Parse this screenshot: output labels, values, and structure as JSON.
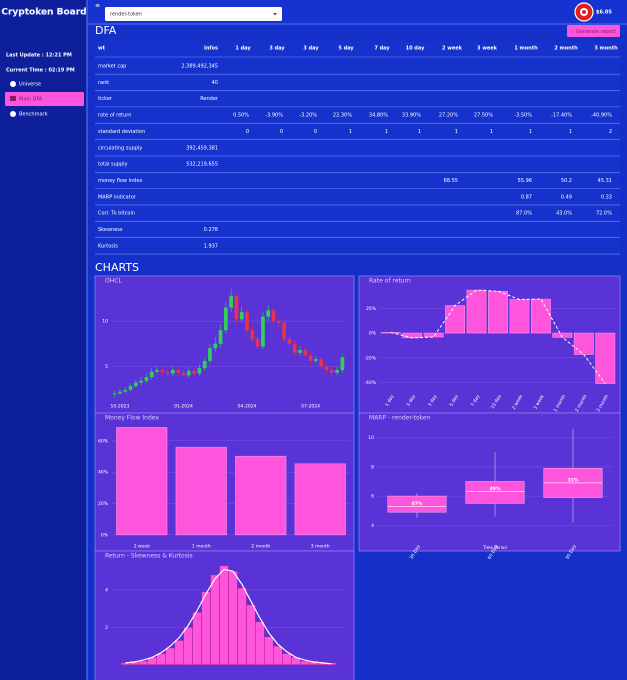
{
  "sidebar": {
    "logo": "Cryptoken Board",
    "last_update": "Last Update : 12:21 PM",
    "current_time": "Current Time : 02:19 PM",
    "nav": [
      "Universe",
      "Main DFA",
      "Benchmark"
    ]
  },
  "header": {
    "select": "render-token",
    "price": "$6.05"
  },
  "dfa": {
    "title": "DFA",
    "button": "Generate report",
    "table": {
      "columns": [
        "wt",
        "Infos",
        "1 day",
        "3 day",
        "3 day",
        "5 day",
        "7 day",
        "10 day",
        "2 week",
        "3 week",
        "1 month",
        "2 month",
        "3 month"
      ],
      "rows": [
        [
          "market cap",
          "2,389,492,345",
          null,
          null,
          null,
          null,
          null,
          null,
          null,
          null,
          null,
          null,
          null
        ],
        [
          "rank",
          "40",
          null,
          null,
          null,
          null,
          null,
          null,
          null,
          null,
          null,
          null,
          null
        ],
        [
          "ticker",
          "Render",
          null,
          null,
          null,
          null,
          null,
          null,
          null,
          null,
          null,
          null,
          null
        ],
        [
          "rate of return",
          null,
          "0.50%",
          "-3.90%",
          "-3.20%",
          "22.30%",
          "34.80%",
          "33.90%",
          "27.20%",
          "27.50%",
          "-3.50%",
          "-17.40%",
          "-40.90%"
        ],
        [
          "standard deviation",
          null,
          "0",
          "0",
          "0",
          "1",
          "1",
          "1",
          "1",
          "1",
          "1",
          "1",
          "2"
        ],
        [
          "circulating supply",
          "392,459,381",
          null,
          null,
          null,
          null,
          null,
          null,
          null,
          null,
          null,
          null,
          null
        ],
        [
          "total supply",
          "532,219,655",
          null,
          null,
          null,
          null,
          null,
          null,
          null,
          null,
          null,
          null,
          null
        ],
        [
          "money flow index",
          null,
          null,
          null,
          null,
          null,
          null,
          null,
          "68.55",
          null,
          "55.96",
          "50.2",
          "45.31"
        ],
        [
          "MARP indicator",
          null,
          null,
          null,
          null,
          null,
          null,
          null,
          null,
          null,
          "0.87",
          "0.49",
          "0.33"
        ],
        [
          "Corr. To bitcoin",
          null,
          null,
          null,
          null,
          null,
          null,
          null,
          null,
          null,
          "87.0%",
          "43.0%",
          "72.0%"
        ],
        [
          "Skewness",
          "0.278",
          null,
          null,
          null,
          null,
          null,
          null,
          null,
          null,
          null,
          null,
          null
        ],
        [
          "Kurtosis",
          "1.937",
          null,
          null,
          null,
          null,
          null,
          null,
          null,
          null,
          null,
          null,
          null
        ]
      ]
    }
  },
  "charts_title": "CHARTS",
  "charts": [
    {
      "type": "candlestick",
      "title": "OHCL",
      "up_color": "#2fd15a",
      "down_color": "#e8334a",
      "categories": [
        null,
        "10-2023",
        null,
        null,
        null,
        null,
        null,
        null,
        null,
        null,
        null,
        null,
        null,
        "01-2024",
        null,
        null,
        null,
        null,
        null,
        null,
        null,
        null,
        null,
        null,
        null,
        "04-2024",
        null,
        null,
        null,
        null,
        null,
        null,
        null,
        null,
        null,
        null,
        null,
        "07-2024",
        null,
        null,
        null,
        null,
        null,
        null
      ],
      "open": [
        1.9,
        2.0,
        2.2,
        2.4,
        2.8,
        3.2,
        3.4,
        3.8,
        4.4,
        4.6,
        4.4,
        4.2,
        4.6,
        4.3,
        4.0,
        4.5,
        4.2,
        4.8,
        5.6,
        7.0,
        7.5,
        9.0,
        11.5,
        12.8,
        10.2,
        11.0,
        9.0,
        8.0,
        7.2,
        10.5,
        11.2,
        10.0,
        9.8,
        8.0,
        7.5,
        6.5,
        6.8,
        6.2,
        5.6,
        5.8,
        5.0,
        4.6,
        4.3,
        4.6
      ],
      "high": [
        2.3,
        2.5,
        2.7,
        3.1,
        3.5,
        3.8,
        4.2,
        4.8,
        5.0,
        4.9,
        4.7,
        5.0,
        4.9,
        4.6,
        4.9,
        4.8,
        5.2,
        6.0,
        7.5,
        8.2,
        9.6,
        12.2,
        13.6,
        13.0,
        11.6,
        11.4,
        9.5,
        8.5,
        11.0,
        11.8,
        11.5,
        10.4,
        10.1,
        8.4,
        7.9,
        7.2,
        7.1,
        6.6,
        6.2,
        6.1,
        5.4,
        4.9,
        5.0,
        6.4
      ],
      "low": [
        1.6,
        1.8,
        2.0,
        2.2,
        2.6,
        2.9,
        3.1,
        3.5,
        4.1,
        4.0,
        3.9,
        3.9,
        4.0,
        3.7,
        3.7,
        3.9,
        3.9,
        4.5,
        5.3,
        6.6,
        7.1,
        8.6,
        11.0,
        9.6,
        9.8,
        8.6,
        7.6,
        6.8,
        6.9,
        10.0,
        9.5,
        9.3,
        7.6,
        7.1,
        6.1,
        6.1,
        5.8,
        5.2,
        5.3,
        4.7,
        4.2,
        3.9,
        4.0,
        4.3
      ],
      "close": [
        2.0,
        2.2,
        2.4,
        2.8,
        3.2,
        3.4,
        3.8,
        4.4,
        4.6,
        4.4,
        4.2,
        4.6,
        4.3,
        4.0,
        4.5,
        4.2,
        4.8,
        5.6,
        7.0,
        7.5,
        9.0,
        11.5,
        12.8,
        10.2,
        11.0,
        9.0,
        8.0,
        7.2,
        10.5,
        11.2,
        10.0,
        9.8,
        8.0,
        7.5,
        6.5,
        6.8,
        6.2,
        5.6,
        5.8,
        5.0,
        4.6,
        4.3,
        4.6,
        6.0
      ],
      "ylim": [
        1.5,
        14
      ],
      "yticks": [
        5,
        10
      ]
    },
    {
      "type": "bar",
      "title": "Rate of return",
      "color": "#ff55dc",
      "line": true,
      "line_color": "#ffffff",
      "categories": [
        "1 day",
        "3 day",
        "3 day",
        "5 day",
        "7 day",
        "10 day",
        "2 week",
        "3 week",
        "1 month",
        "2 month",
        "3 month"
      ],
      "values": [
        0.5,
        -3.9,
        -3.2,
        22.3,
        34.8,
        33.9,
        27.2,
        27.5,
        -3.5,
        -17.4,
        -40.9
      ],
      "ylim": [
        -44.5,
        36.5
      ],
      "yticks": [
        {
          "value": -40,
          "label": "-40%"
        },
        {
          "value": -20,
          "label": "-20%"
        },
        {
          "value": 0,
          "label": "0%"
        },
        {
          "value": 20,
          "label": "20%"
        }
      ]
    },
    {
      "type": "bar",
      "title": "Money Flow Index",
      "color": "#ff55dc",
      "line": false,
      "categories": [
        "2 week",
        "1 month",
        "2 month",
        "3 month"
      ],
      "values": [
        68.55,
        55.96,
        50.2,
        45.31
      ],
      "ylim": [
        -2,
        72
      ],
      "yticks": [
        {
          "value": 0,
          "label": "0%"
        },
        {
          "value": 20,
          "label": "20%"
        },
        {
          "value": 40,
          "label": "40%"
        },
        {
          "value": 60,
          "label": "60%"
        }
      ]
    },
    {
      "type": "box",
      "title": "MARP - render-token",
      "color": "#ff55dc",
      "x_label": "Time Period",
      "categories": [
        "30 Day",
        "60 Day",
        "90 Day"
      ],
      "boxes": [
        {
          "min": 4.5,
          "q1": 4.9,
          "median": 5.3,
          "q3": 6.0,
          "max": 6.2
        },
        {
          "min": 4.6,
          "q1": 5.5,
          "median": 6.3,
          "q3": 7.0,
          "max": 9.0
        },
        {
          "min": 4.2,
          "q1": 5.9,
          "median": 6.9,
          "q3": 7.9,
          "max": 10.6
        }
      ],
      "box_labels": [
        "87%",
        "49%",
        "33%"
      ],
      "ylim": [
        3,
        11.2
      ],
      "yticks": [
        4,
        6,
        8,
        10
      ]
    },
    {
      "type": "histogram",
      "title": "Return - Skewness & Kurtosis",
      "color": "#ff55dc",
      "line_color": "#ffffff",
      "bins": [
        -0.12,
        -0.11,
        -0.1,
        -0.09,
        -0.08,
        -0.07,
        -0.06,
        -0.05,
        -0.04,
        -0.03,
        -0.02,
        -0.01,
        0,
        0.01,
        0.02,
        0.03,
        0.04,
        0.05,
        0.06,
        0.07,
        0.08,
        0.09,
        0.1,
        0.11,
        0.12
      ],
      "counts": [
        0.1,
        0.2,
        0.2,
        0.4,
        0.6,
        0.9,
        1.3,
        2.0,
        2.8,
        3.9,
        4.8,
        5.3,
        5.0,
        4.1,
        3.2,
        2.3,
        1.5,
        1.0,
        0.6,
        0.4,
        0.2,
        0.2,
        0.1,
        0.1
      ],
      "kde": [
        0.1,
        0.15,
        0.25,
        0.4,
        0.65,
        1.0,
        1.45,
        2.1,
        2.9,
        3.8,
        4.6,
        5.1,
        5.0,
        4.3,
        3.4,
        2.5,
        1.7,
        1.1,
        0.7,
        0.4,
        0.25,
        0.15,
        0.1,
        0.05
      ],
      "xlim": [
        -0.13,
        0.13
      ],
      "ylim": [
        -0.6,
        5.6
      ],
      "yticks": [
        2,
        4
      ]
    }
  ]
}
